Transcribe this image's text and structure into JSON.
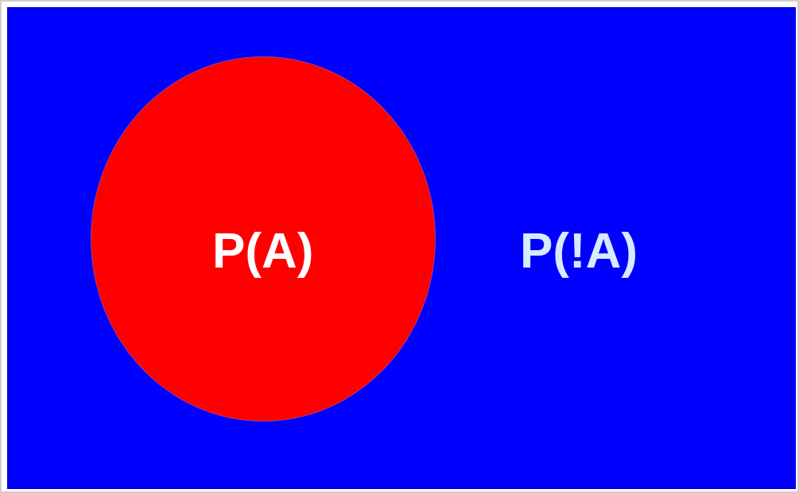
{
  "diagram": {
    "type": "venn-single-event",
    "colors": {
      "universe": "#0000ff",
      "event_region": "#ff0000",
      "event_label": "#ffffff",
      "complement_label": "#d6eaff"
    },
    "event_label": "P(A)",
    "complement_label": "P(!A)"
  }
}
